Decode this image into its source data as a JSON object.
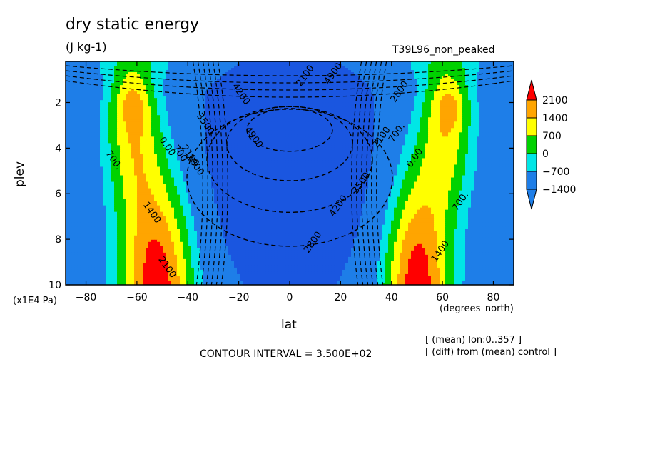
{
  "title": "dry static energy",
  "units": "(J kg-1)",
  "run_label": "T39L96_non_peaked",
  "x_axis_label": "lat",
  "x_axis_units": "(degrees_north)",
  "y_axis_label": "plev",
  "y_axis_units": "(x1E4 Pa)",
  "contour_interval_text": "CONTOUR INTERVAL = 3.500E+02",
  "notes": [
    "[ (mean) lon:0..357 ]",
    "[ (diff) from (mean) control ]"
  ],
  "chart_data": {
    "type": "heatmap",
    "style": "filled contour",
    "title": "dry static energy",
    "xlabel": "lat",
    "ylabel": "plev",
    "xlim": [
      -88,
      88
    ],
    "ylim": [
      10,
      0.2
    ],
    "x_ticks": [
      -80,
      -60,
      -40,
      -20,
      0,
      20,
      40,
      60,
      80
    ],
    "y_ticks": [
      2,
      4,
      6,
      8,
      10
    ],
    "colorbar": {
      "labels": [
        "2100",
        "1400",
        "700",
        "0",
        "−700",
        "−1400"
      ],
      "levels": [
        -2100,
        -1400,
        -700,
        0,
        700,
        1400,
        2100
      ],
      "colors": {
        "below": "#1e7ee8",
        "-1400": "#1e7ee8",
        "-700": "#00e6e6",
        "0": "#00d200",
        "700": "#ffff00",
        "1400": "#ffa500",
        "2100": "#ff0000",
        "deep": "#1a56e0"
      }
    },
    "contour_labels": [
      {
        "text": "2100",
        "lat": -49,
        "p": 9.3
      },
      {
        "text": "1400",
        "lat": -55,
        "p": 6.9
      },
      {
        "text": "700.",
        "lat": -70,
        "p": 4.6
      },
      {
        "text": "0.00",
        "lat": -49,
        "p": 4.0
      },
      {
        "text": "700",
        "lat": -44,
        "p": 4.3
      },
      {
        "text": "2100",
        "lat": -40,
        "p": 4.4
      },
      {
        "text": "2800",
        "lat": -38,
        "p": 4.8
      },
      {
        "text": "3500",
        "lat": -34,
        "p": 3.0
      },
      {
        "text": "4200",
        "lat": -20,
        "p": 1.7
      },
      {
        "text": "4900",
        "lat": -15,
        "p": 3.6
      },
      {
        "text": "2100",
        "lat": 7,
        "p": 0.9
      },
      {
        "text": "4900",
        "lat": 18,
        "p": 0.8
      },
      {
        "text": "2800",
        "lat": 10,
        "p": 8.2
      },
      {
        "text": "4200",
        "lat": 20,
        "p": 6.6
      },
      {
        "text": "3500",
        "lat": 29,
        "p": 5.6
      },
      {
        "text": "2800",
        "lat": 44,
        "p": 1.6
      },
      {
        "text": "2100",
        "lat": 37,
        "p": 3.6
      },
      {
        "text": "700.",
        "lat": 43,
        "p": 3.4
      },
      {
        "text": "0.00",
        "lat": 50,
        "p": 4.5
      },
      {
        "text": "700.",
        "lat": 68,
        "p": 6.4
      },
      {
        "text": "1400",
        "lat": 60,
        "p": 8.6
      }
    ]
  }
}
